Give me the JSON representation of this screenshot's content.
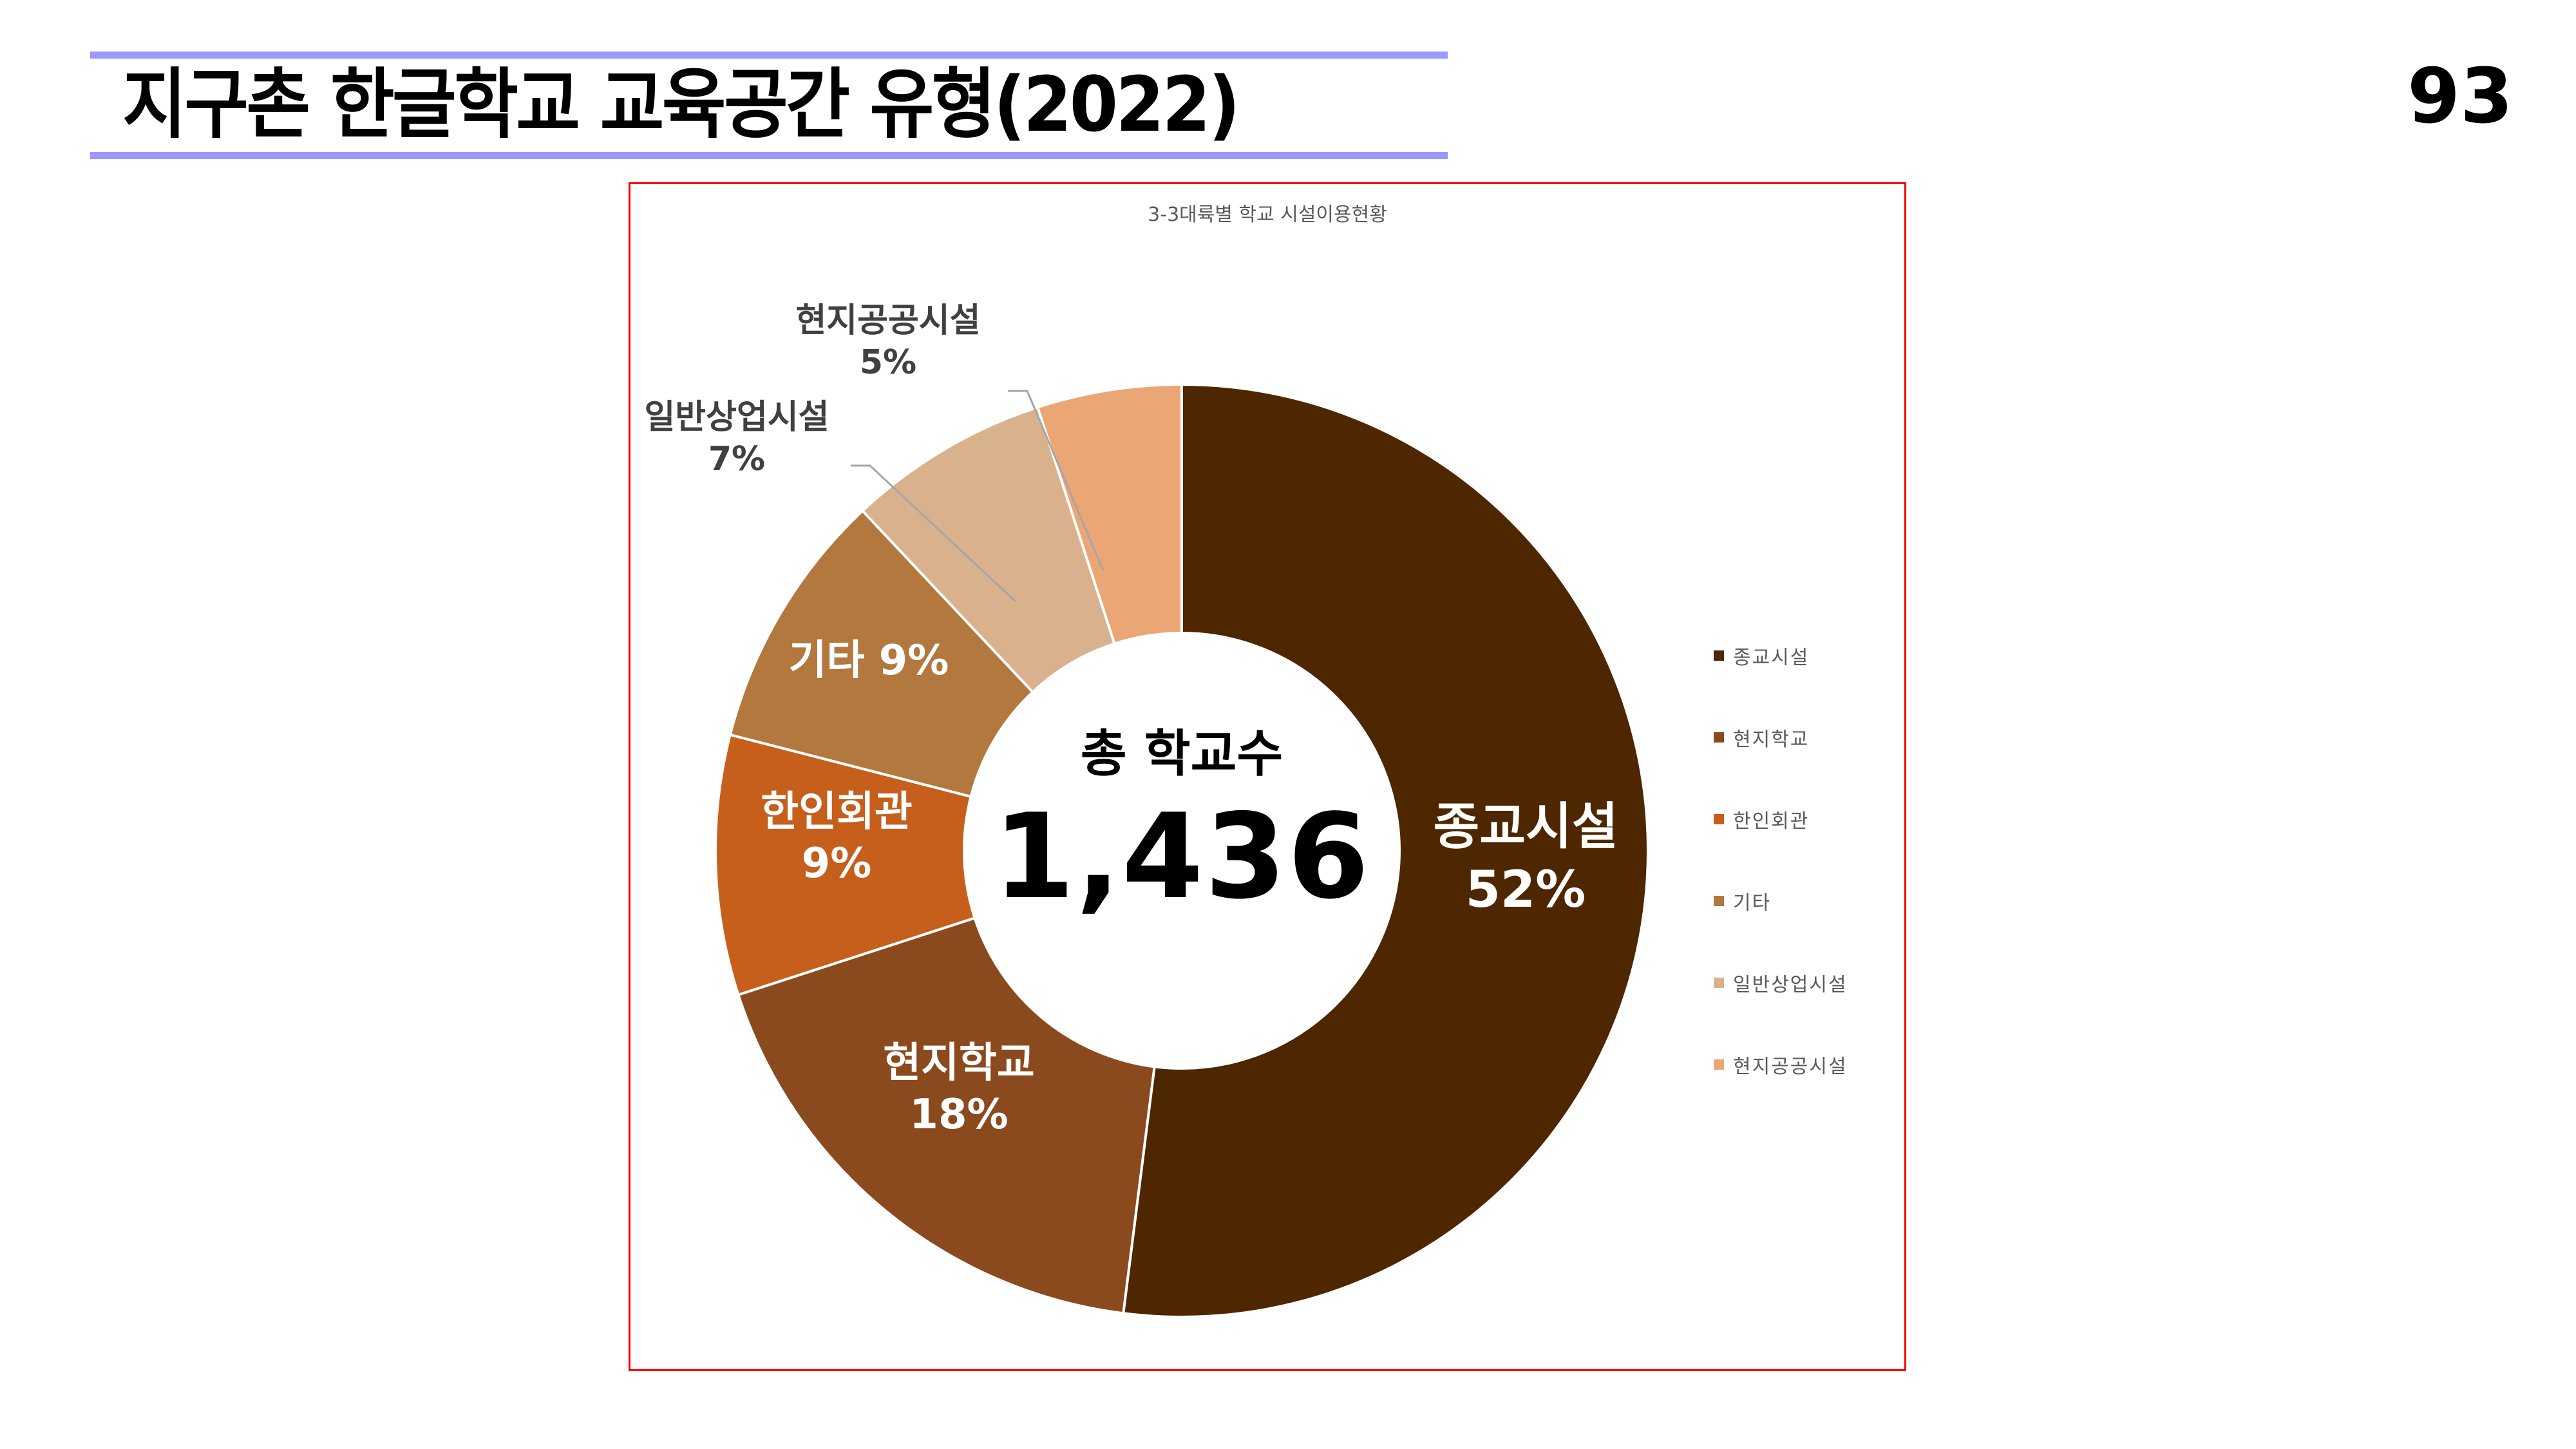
{
  "header": {
    "title": "지구촌 한글학교 교육공간 유형(2022)",
    "page_number": "93",
    "accent_line_color": "#9999ff"
  },
  "frame": {
    "border_color": "#ff0000"
  },
  "center": {
    "caption": "총 학교수",
    "total": "1,436"
  },
  "chart_data": {
    "type": "pie",
    "variant": "donut",
    "title": "3-3대륙별 학교 시설이용현황",
    "categories": [
      "종교시설",
      "현지학교",
      "한인회관",
      "기타",
      "일반상업시설",
      "현지공공시설"
    ],
    "values": [
      52,
      18,
      9,
      9,
      7,
      5
    ],
    "unit": "%",
    "colors": [
      "#4e2600",
      "#8b4a1e",
      "#c65f1c",
      "#b2783e",
      "#d9b18c",
      "#eba676"
    ],
    "data_labels": [
      "종교시설 52%",
      "현지학교 18%",
      "한인회관 9%",
      "기타 9%",
      "일반상업시설 7%",
      "현지공공시설 5%"
    ],
    "center_text": "총 학교수 1,436",
    "total_schools": 1436,
    "legend_position": "right",
    "start_angle": 0,
    "direction": "clockwise"
  },
  "labels": {
    "religious": {
      "name": "종교시설",
      "pct": "52%"
    },
    "local_school": {
      "name": "현지학교",
      "pct": "18%"
    },
    "korean_hall": {
      "name": "한인회관",
      "pct": "9%"
    },
    "other": {
      "name": "기타",
      "pct": "9%",
      "combined": "기타 9%"
    },
    "commercial": {
      "name": "일반상업시설",
      "pct": "7%"
    },
    "public": {
      "name": "현지공공시설",
      "pct": "5%"
    }
  },
  "legend": {
    "items": [
      {
        "label": "종교시설",
        "color": "#4e2600"
      },
      {
        "label": "현지학교",
        "color": "#8b4a1e"
      },
      {
        "label": "한인회관",
        "color": "#c65f1c"
      },
      {
        "label": "기타",
        "color": "#b2783e"
      },
      {
        "label": "일반상업시설",
        "color": "#d9b18c"
      },
      {
        "label": "현지공공시설",
        "color": "#eba676"
      }
    ]
  }
}
